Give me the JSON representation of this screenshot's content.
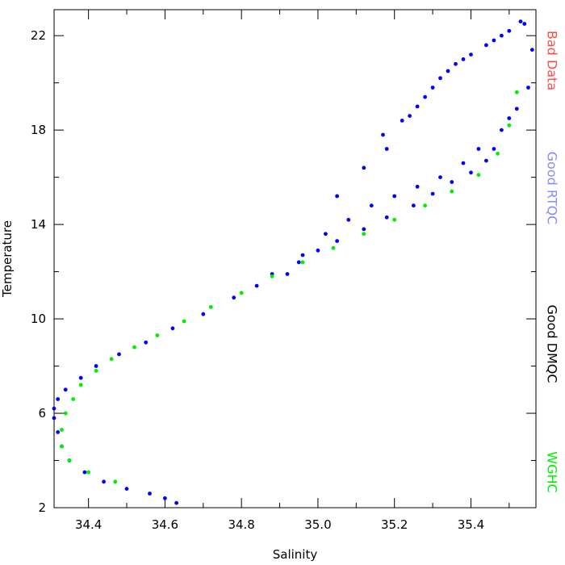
{
  "chart_data": {
    "type": "scatter",
    "xlabel": "Salinity",
    "ylabel": "Temperature",
    "xlim": [
      34.31,
      35.57
    ],
    "ylim": [
      2.0,
      23.1
    ],
    "x_ticks": [
      34.4,
      34.6,
      34.8,
      35.0,
      35.2,
      35.4
    ],
    "x_tick_labels": [
      "34.4",
      "34.6",
      "34.8",
      "35.0",
      "35.2",
      "35.4"
    ],
    "y_ticks": [
      2,
      6,
      10,
      14,
      18,
      22
    ],
    "y_tick_labels": [
      "2",
      "6",
      "10",
      "14",
      "18",
      "22"
    ],
    "legend": [
      {
        "label": "Bad Data",
        "color": "#ff4a4a"
      },
      {
        "label": "Good RTQC",
        "color": "#8a8aff"
      },
      {
        "label": "Good DMQC",
        "color": "#000000"
      },
      {
        "label": "WGHC",
        "color": "#00ee00"
      }
    ],
    "legend_placement": "right, vertical",
    "grid": false,
    "series": [
      {
        "name": "Good RTQC",
        "color": "#0000ff",
        "x": [
          34.63,
          34.6,
          34.56,
          34.5,
          34.44,
          34.39,
          34.35,
          34.33,
          34.32,
          34.31,
          34.31,
          34.32,
          34.34,
          34.38,
          34.42,
          34.48,
          34.55,
          34.62,
          34.7,
          34.78,
          34.84,
          34.88,
          34.95,
          35.0,
          35.05,
          35.12,
          35.18,
          35.25,
          35.3,
          35.35,
          35.4,
          35.44,
          35.46,
          35.5,
          35.55,
          34.92,
          34.96,
          35.02,
          35.08,
          35.14,
          35.2,
          35.26,
          35.32,
          35.38,
          35.42,
          35.48,
          35.52,
          35.18,
          35.22,
          35.26,
          35.3,
          35.34,
          35.38,
          35.44,
          35.48,
          35.54,
          35.56,
          35.05,
          35.12,
          35.17,
          35.24,
          35.28,
          35.32,
          35.36,
          35.4,
          35.46,
          35.5,
          35.53
        ],
        "y": [
          2.2,
          2.4,
          2.6,
          2.8,
          3.1,
          3.5,
          4.0,
          4.6,
          5.2,
          5.8,
          6.2,
          6.6,
          7.0,
          7.5,
          8.0,
          8.5,
          9.0,
          9.6,
          10.2,
          10.9,
          11.4,
          11.9,
          12.4,
          12.9,
          13.3,
          13.8,
          14.3,
          14.8,
          15.3,
          15.8,
          16.2,
          16.7,
          17.2,
          18.5,
          19.8,
          11.9,
          12.7,
          13.6,
          14.2,
          14.8,
          15.2,
          15.6,
          16.0,
          16.6,
          17.2,
          18.0,
          18.9,
          17.2,
          18.4,
          19.0,
          19.8,
          20.5,
          21.0,
          21.6,
          22.0,
          22.5,
          21.4,
          15.2,
          16.4,
          17.8,
          18.6,
          19.4,
          20.2,
          20.8,
          21.2,
          21.8,
          22.2,
          22.6
        ]
      },
      {
        "name": "WGHC",
        "color": "#00ee00",
        "x": [
          34.47,
          34.4,
          34.35,
          34.33,
          34.33,
          34.34,
          34.36,
          34.38,
          34.42,
          34.46,
          34.52,
          34.58,
          34.65,
          34.72,
          34.8,
          34.88,
          34.96,
          35.04,
          35.12,
          35.2,
          35.28,
          35.35,
          35.42,
          35.47,
          35.5,
          35.52
        ],
        "y": [
          3.1,
          3.5,
          4.0,
          4.6,
          5.3,
          6.0,
          6.6,
          7.2,
          7.8,
          8.3,
          8.8,
          9.3,
          9.9,
          10.5,
          11.1,
          11.8,
          12.4,
          13.0,
          13.6,
          14.2,
          14.8,
          15.4,
          16.1,
          17.0,
          18.2,
          19.6
        ]
      }
    ]
  }
}
